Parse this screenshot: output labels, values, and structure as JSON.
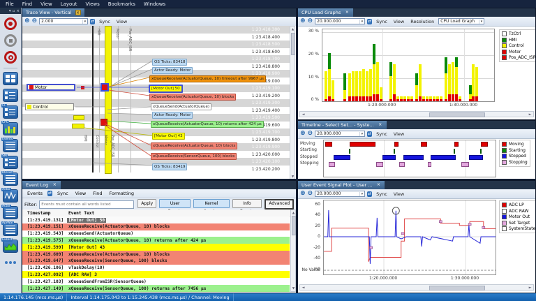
{
  "menu_bar": {
    "items": [
      "File",
      "Find",
      "View",
      "Layout",
      "Views",
      "Bookmarks",
      "Windows"
    ]
  },
  "sidebar": {
    "window_buttons": [
      "▾",
      "▫",
      "×"
    ],
    "items": [
      {
        "name": "record-icon",
        "type": "record"
      },
      {
        "name": "stop-icon",
        "type": "stop"
      },
      {
        "name": "snapshot-icon",
        "type": "snapshot"
      },
      {
        "name": "divider-1",
        "type": "divider"
      },
      {
        "name": "views-grid-icon",
        "type": "grid"
      },
      {
        "name": "trace-view-icon",
        "type": "tree"
      },
      {
        "name": "communication-flow-icon",
        "type": "tree",
        "label": "CF"
      },
      {
        "name": "cpu-load-graph-icon",
        "type": "cpu",
        "label": "CPU"
      },
      {
        "name": "event-log-icon",
        "type": "list",
        "label": "Events"
      },
      {
        "name": "state-machine-icon",
        "type": "tree",
        "label": "SM"
      },
      {
        "name": "kernel-object-history-icon",
        "type": "list",
        "label": "KOHist"
      },
      {
        "name": "actor-instance-graph-icon",
        "type": "wave",
        "label": "Actor"
      },
      {
        "name": "actor-statistics-icon",
        "type": "list",
        "label": "Actor"
      },
      {
        "name": "api-usage-icon",
        "type": "list",
        "label": "ApiWar"
      },
      {
        "name": "event-distribution-icon",
        "type": "dist",
        "label": "EvDist"
      },
      {
        "name": "more-views-icon",
        "type": "dots"
      }
    ]
  },
  "trace_view": {
    "tab_title": "Trace View - Vertical",
    "toolbar": {
      "zoom_value": "2.000",
      "sync": "Sync",
      "view": "View"
    },
    "lane_labels_top": [
      "HMI",
      "Motor",
      "Pos_ADC_ISR"
    ],
    "lane_labels_bottom": [
      "HMI",
      "Control",
      "Motor",
      "Pos_ADC_ISR"
    ],
    "actor_boxes": [
      {
        "label": "Motor",
        "swatch": "#e01616"
      },
      {
        "label": "Control",
        "swatch": "#eded0c"
      }
    ],
    "timestamps": [
      "1:23.418.300",
      "1:23.418.400",
      "1:23.418.500",
      "1:23.418.600",
      "1:23.418.700",
      "1:23.418.800",
      "1:23.418.900",
      "1:23.419.000",
      "1:23.419.100",
      "1:23.419.200",
      "1:23.419.300",
      "1:23.419.400",
      "1:23.419.500",
      "1:23.419.600",
      "1:23.419.700",
      "1:23.419.800",
      "1:23.419.900",
      "1:23.420.000",
      "1:23.420.100",
      "1:23.420.200"
    ],
    "events": [
      {
        "label": "OS Ticks: 83418",
        "kind": "info"
      },
      {
        "label": "Actor Ready: Motor",
        "kind": "info"
      },
      {
        "label": "xQueueReceive(ActuatorQueue, 10) timeout after 9967 µs",
        "kind": "timeout"
      },
      {
        "label": "[Motor Out] 50",
        "kind": "user-selected"
      },
      {
        "label": "xQueueReceive(ActuatorQueue, 10) blocks",
        "kind": "block"
      },
      {
        "label": "xQueueSend(ActuatorQueue)",
        "kind": "plain"
      },
      {
        "label": "Actor Ready: Motor",
        "kind": "info"
      },
      {
        "label": "xQueueReceive(ActuatorQueue, 10) returns after 424 µs",
        "kind": "return"
      },
      {
        "label": "[Motor Out] 43",
        "kind": "user"
      },
      {
        "label": "xQueueReceive(ActuatorQueue, 10) blocks",
        "kind": "block"
      },
      {
        "label": "xQueueReceive(SensorQueue, 100) blocks",
        "kind": "block"
      },
      {
        "label": "OS Ticks: 83419",
        "kind": "info"
      }
    ]
  },
  "event_log": {
    "tab_title": "Event Log",
    "menu": [
      "Events",
      "Sync",
      "View",
      "Find",
      "Formatting"
    ],
    "filter_label": "Filter:",
    "filter_placeholder": "Events must contain all words listed",
    "buttons": [
      {
        "label": "Apply",
        "style": "plain"
      },
      {
        "label": "User Events",
        "style": "toggled"
      },
      {
        "label": "Kernel Service",
        "style": "toggled"
      },
      {
        "label": "Info Events",
        "style": "plain"
      },
      {
        "label": "Advanced",
        "style": "focused"
      }
    ],
    "columns": [
      "Timestamp",
      "Event Text"
    ],
    "rows": [
      {
        "ts": "[1:23.419.131]",
        "text": "[Motor Out] 50",
        "kind": "selected"
      },
      {
        "ts": "[1:23.419.151]",
        "text": "xQueueReceive(ActuatorQueue, 10) blocks",
        "kind": "block"
      },
      {
        "ts": "[1:23.419.543]",
        "text": "xQueueSend(ActuatorQueue)",
        "kind": "plain"
      },
      {
        "ts": "[1:23.419.575]",
        "text": "xQueueReceive(ActuatorQueue, 10) returns after 424 µs",
        "kind": "return"
      },
      {
        "ts": "[1:23.419.599]",
        "text": "[Motor Out] 43",
        "kind": "user"
      },
      {
        "ts": "[1:23.419.609]",
        "text": "xQueueReceive(ActuatorQueue, 10) blocks",
        "kind": "block"
      },
      {
        "ts": "[1:23.419.647]",
        "text": "xQueueReceive(SensorQueue, 100) blocks",
        "kind": "block"
      },
      {
        "ts": "[1:23.426.106]",
        "text": "vTaskDelay(10)",
        "kind": "plain"
      },
      {
        "ts": "[1:23.427.092]",
        "text": "[ADC RAW] 3",
        "kind": "user"
      },
      {
        "ts": "[1:23.427.103]",
        "text": "xQueueSendFromISR(SensorQueue)",
        "kind": "plain"
      },
      {
        "ts": "[1:23.427.149]",
        "text": "xQueueReceive(SensorQueue, 100) returns after 7456 µs",
        "kind": "return"
      }
    ]
  },
  "cpu_panel": {
    "tab_title": "CPU Load Graphs",
    "toolbar": {
      "zoom_value": "20.000.000",
      "sync": "Sync",
      "view": "View",
      "resolution": "Resolution",
      "graph_type": "CPU Load Graph"
    }
  },
  "timeline_panel": {
    "tab_title": "Timeline - Select Set... - Syste...",
    "toolbar": {
      "zoom_value": "20.000.000",
      "sync": "Sync",
      "view": "View"
    }
  },
  "signal_panel": {
    "tab_title": "User Event Signal Plot - User ...",
    "toolbar": {
      "zoom_value": "20.000.000",
      "sync": "Sync",
      "view": "View"
    }
  },
  "chart_data": [
    {
      "id": "cpu_load",
      "type": "bar",
      "stacked": true,
      "title": "CPU Load Graphs",
      "ylim": [
        0,
        30
      ],
      "y_ticks": [
        "30 %",
        "20 %",
        "10 %",
        "0 %"
      ],
      "x_ticks": [
        "1:20.000.000",
        "1:30.000.000"
      ],
      "x_tick_pos": [
        35,
        82.5
      ],
      "legend": [
        {
          "label": "TzCtrl",
          "color": "#ffffff"
        },
        {
          "label": "HMI",
          "color": "#0a8a0a"
        },
        {
          "label": "Control",
          "color": "#f3f300"
        },
        {
          "label": "Motor",
          "color": "#e00000"
        },
        {
          "label": "Pos_ADC_ISR",
          "color": "#e00000"
        }
      ],
      "segment_colors": [
        "#e00000",
        "#f3f300",
        "#0a8a0a"
      ],
      "bars": [
        [
          2,
          1,
          12,
          0
        ],
        [
          4,
          2,
          12,
          7
        ],
        [
          6,
          1,
          8,
          0
        ],
        [
          13,
          1,
          4,
          7
        ],
        [
          16,
          2,
          10,
          0
        ],
        [
          18,
          2,
          11,
          0
        ],
        [
          20,
          2,
          11,
          0
        ],
        [
          22,
          2,
          11,
          0
        ],
        [
          24,
          2,
          12,
          0
        ],
        [
          26,
          2,
          11,
          0
        ],
        [
          28,
          2,
          12,
          0
        ],
        [
          30,
          3,
          13,
          9
        ],
        [
          32,
          3,
          14,
          0
        ],
        [
          34,
          1,
          5,
          0
        ],
        [
          40,
          1,
          10,
          6
        ],
        [
          42,
          3,
          13,
          0
        ],
        [
          44,
          1,
          1,
          0
        ],
        [
          46,
          1,
          1,
          0
        ],
        [
          48,
          1,
          1,
          0
        ],
        [
          50,
          1,
          1,
          0
        ],
        [
          52,
          1,
          1,
          0
        ],
        [
          55,
          1,
          6,
          5
        ],
        [
          57,
          2,
          14,
          0
        ],
        [
          59,
          1,
          1,
          0
        ],
        [
          61,
          1,
          1,
          0
        ],
        [
          63,
          1,
          1,
          0
        ],
        [
          65,
          1,
          1,
          0
        ],
        [
          67,
          1,
          1,
          0
        ],
        [
          69,
          1,
          1,
          0
        ],
        [
          72,
          1,
          11,
          7
        ],
        [
          74,
          3,
          13,
          0
        ],
        [
          76,
          3,
          14,
          0
        ],
        [
          78,
          3,
          12,
          4
        ],
        [
          80,
          1,
          1,
          0
        ],
        [
          86,
          1,
          2,
          4
        ],
        [
          88,
          2,
          14,
          0
        ],
        [
          90,
          2,
          13,
          0
        ]
      ]
    },
    {
      "id": "timeline",
      "type": "state-timeline",
      "rows": [
        "Moving",
        "Starting",
        "Stopped",
        "Stopping"
      ],
      "x_ticks": [
        "1:20.000.000",
        "1:30.000.000"
      ],
      "x_tick_pos": [
        35,
        82.5
      ],
      "legend": [
        {
          "label": "Moving",
          "color": "#e00000"
        },
        {
          "label": "Starting",
          "color": "#0a8a0a"
        },
        {
          "label": "Stopped",
          "color": "#1515dd"
        },
        {
          "label": "Stopping",
          "color": "#e2a6dd"
        }
      ],
      "bars": {
        "Moving": [
          [
            1,
            4
          ],
          [
            15,
            15
          ],
          [
            41,
            2.5
          ],
          [
            56.5,
            3.5
          ],
          [
            76,
            2.5
          ],
          [
            91.5,
            4
          ]
        ],
        "Starting": [
          [
            14.6,
            0.8
          ],
          [
            40.6,
            0.8
          ],
          [
            75.6,
            0.8
          ],
          [
            91,
            0.8
          ]
        ],
        "Stopped": [
          [
            5.5,
            10
          ],
          [
            34,
            8
          ],
          [
            46.5,
            11.5
          ],
          [
            62,
            15
          ],
          [
            84.5,
            8
          ]
        ],
        "Stopping": [
          [
            3,
            3.5
          ],
          [
            30.5,
            4
          ],
          [
            44,
            3
          ],
          [
            60.5,
            2
          ],
          [
            80,
            4.5
          ]
        ]
      }
    },
    {
      "id": "signal_plot",
      "type": "line",
      "ylim": [
        -60,
        60
      ],
      "y_ticks": [
        60,
        40,
        20,
        0,
        -20,
        -40,
        -60
      ],
      "no_value_label": "No Value",
      "x_ticks": [
        "1:20.000.000",
        "1:30.000.000"
      ],
      "x_tick_pos": [
        35,
        82.5
      ],
      "legend": [
        {
          "label": "ADC LP",
          "color": "#e00000"
        },
        {
          "label": "ADC RAW",
          "color": "#ffffff"
        },
        {
          "label": "Motor Out",
          "color": "#1515dd"
        },
        {
          "label": "Set Target",
          "color": "#e2a6dd"
        },
        {
          "label": "SystemState",
          "color": "#ffffff"
        }
      ],
      "series": [
        {
          "name": "ADC LP",
          "color": "#e04848",
          "points": [
            [
              0,
              -27
            ],
            [
              4.5,
              -27
            ],
            [
              4.5,
              16
            ],
            [
              26,
              16
            ],
            [
              26,
              -46
            ],
            [
              27,
              -38
            ],
            [
              45,
              -38
            ],
            [
              45,
              -8
            ],
            [
              47,
              -8
            ],
            [
              47,
              33
            ],
            [
              68,
              33
            ],
            [
              68,
              25
            ],
            [
              79,
              25
            ],
            [
              79,
              21
            ],
            [
              85,
              21
            ],
            [
              85,
              28
            ],
            [
              93,
              28
            ],
            [
              93,
              15
            ],
            [
              100,
              15
            ]
          ]
        },
        {
          "name": "Motor Out",
          "color": "#2828d8",
          "points": [
            [
              0,
              0
            ],
            [
              2.3,
              0
            ],
            [
              2.8,
              49
            ],
            [
              3.3,
              0
            ],
            [
              12,
              0
            ],
            [
              26.5,
              0
            ],
            [
              27,
              -50
            ],
            [
              27.5,
              0
            ],
            [
              30.5,
              0
            ],
            [
              31,
              35
            ],
            [
              31.5,
              0
            ],
            [
              41.5,
              0
            ],
            [
              42,
              48
            ],
            [
              42.5,
              0
            ],
            [
              45,
              -4
            ],
            [
              48,
              0
            ],
            [
              56.5,
              0
            ],
            [
              57,
              -18
            ],
            [
              57.5,
              0
            ],
            [
              62,
              -6
            ],
            [
              63,
              0
            ],
            [
              75,
              -8
            ],
            [
              75.5,
              0
            ],
            [
              84,
              0
            ],
            [
              84.5,
              22
            ],
            [
              85,
              0
            ],
            [
              91,
              -12
            ],
            [
              91.5,
              0
            ],
            [
              100,
              0
            ]
          ]
        }
      ],
      "set_target_marks": [
        [
          27.5,
          -20
        ],
        [
          46,
          6
        ],
        [
          68,
          28
        ],
        [
          85,
          23
        ],
        [
          93,
          17
        ]
      ],
      "highlight_marker": {
        "x": 42,
        "value": 48
      }
    }
  ],
  "status_bar": {
    "left": "1:14.176.145 (mcs.ms.µs)",
    "center": "Interval 1:14.175.043 to 1:15.245.438 (mcs.ms.µs) / Channel: Moving"
  }
}
